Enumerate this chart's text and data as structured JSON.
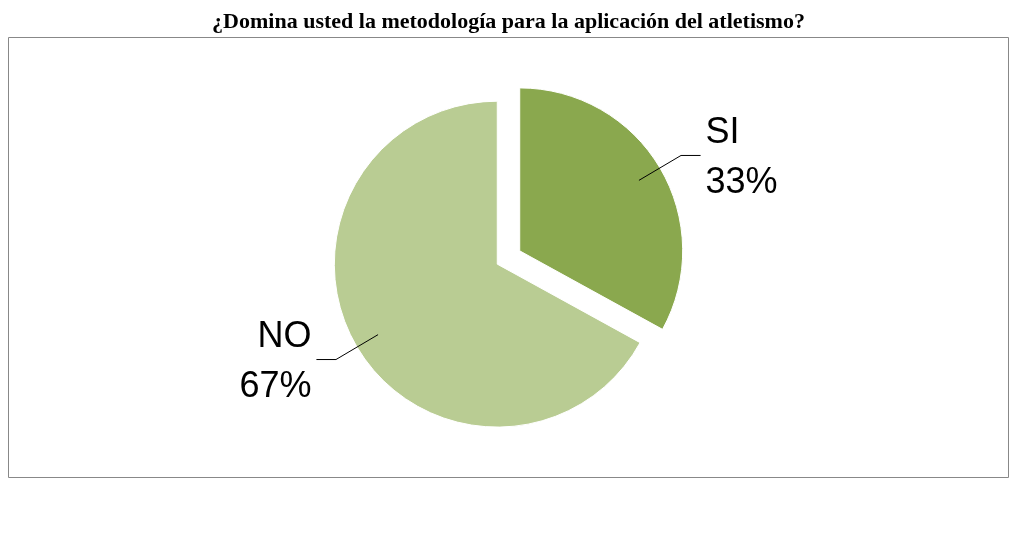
{
  "chart_data": {
    "type": "pie",
    "title": "¿Domina usted la metodología para la aplicación del atletismo?",
    "categories": [
      "SI",
      "NO"
    ],
    "values": [
      33,
      67
    ],
    "colors": [
      "#8aa84e",
      "#b9cc93"
    ],
    "value_labels": [
      "33%",
      "67%"
    ]
  }
}
